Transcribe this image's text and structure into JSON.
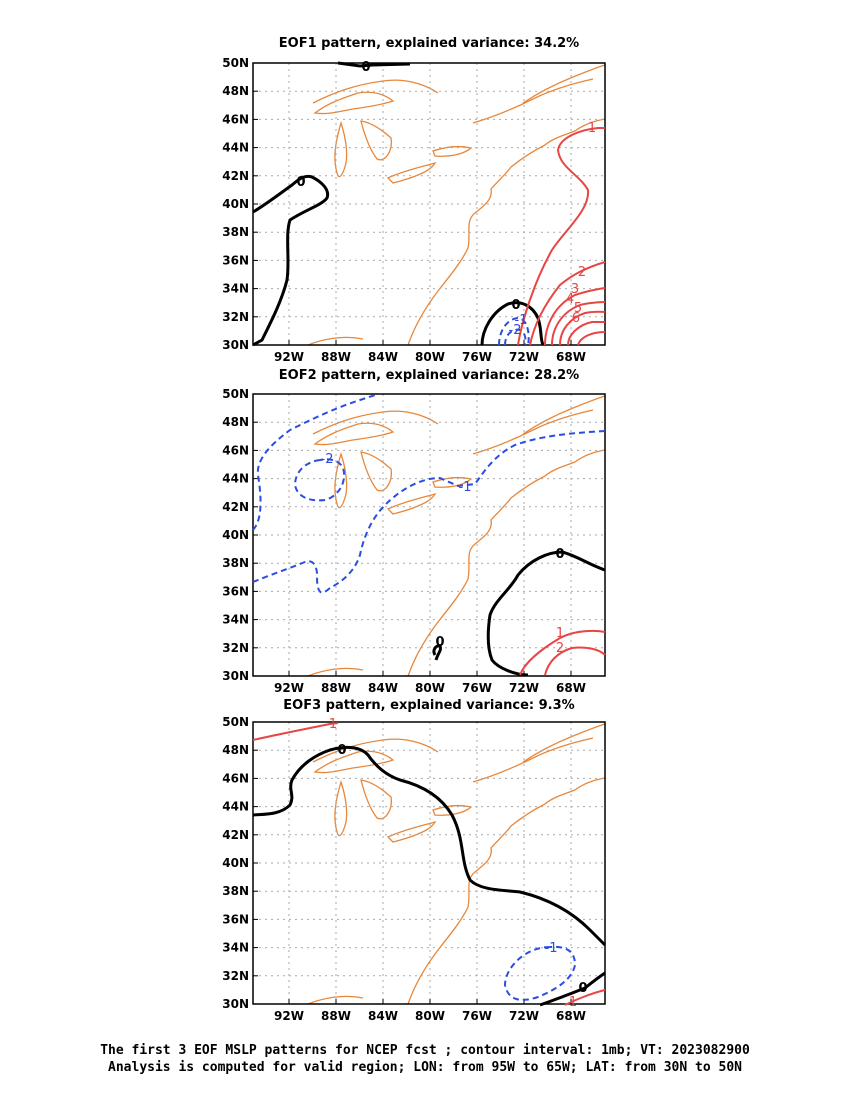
{
  "panels": [
    {
      "title": "EOF1 pattern, explained variance: 34.2%",
      "contour_labels": [
        "0",
        "0",
        "0",
        "-1",
        "-2",
        "1",
        "2",
        "3",
        "4",
        "5",
        "6"
      ]
    },
    {
      "title": "EOF2 pattern, explained variance: 28.2%",
      "contour_labels": [
        "-1",
        "-2",
        "0",
        "0",
        "1",
        "2"
      ]
    },
    {
      "title": "EOF3 pattern, explained variance: 9.3%",
      "contour_labels": [
        "1",
        "0",
        "-1",
        "0",
        "1"
      ]
    }
  ],
  "axes": {
    "lat_labels": [
      "50N",
      "48N",
      "46N",
      "44N",
      "42N",
      "40N",
      "38N",
      "36N",
      "34N",
      "32N",
      "30N"
    ],
    "lon_labels": [
      "92W",
      "88W",
      "84W",
      "80W",
      "76W",
      "72W",
      "68W"
    ]
  },
  "caption": {
    "line1": "The first 3 EOF MSLP patterns for NCEP fcst ; contour interval: 1mb; VT: 2023082900",
    "line2": "Analysis is computed for valid region; LON: from 95W to 65W; LAT: from 30N to 50N"
  },
  "colors": {
    "coast": "#e8873a",
    "positive": "#e84545",
    "negative": "#2b4de0",
    "zero": "#000000",
    "grid": "#aaaaaa"
  }
}
